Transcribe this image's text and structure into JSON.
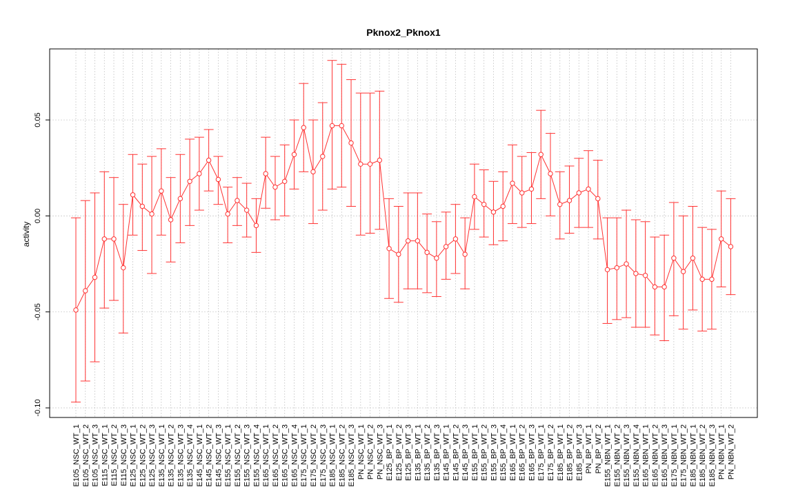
{
  "chart_data": {
    "type": "line",
    "title": "Pknox2_Pknox1",
    "xlabel": "",
    "ylabel": "activity",
    "ylim": [
      -0.105,
      0.087
    ],
    "y_ticks": [
      -0.1,
      -0.05,
      0.0,
      0.05
    ],
    "y_tick_labels": [
      "-0.10",
      "-0.05",
      "0.00",
      "0.05"
    ],
    "grid": true,
    "series_color": "#ff3030",
    "categories": [
      "E105_NSC_WT_1",
      "E105_NSC_WT_2",
      "E105_NSC_WT_3",
      "E115_NSC_WT_1",
      "E115_NSC_WT_2",
      "E115_NSC_WT_3",
      "E125_NSC_WT_1",
      "E125_NSC_WT_2",
      "E125_NSC_WT_3",
      "E135_NSC_WT_1",
      "E135_NSC_WT_2",
      "E135_NSC_WT_3",
      "E135_NSC_WT_4",
      "E145_NSC_WT_1",
      "E145_NSC_WT_2",
      "E145_NSC_WT_3",
      "E155_NSC_WT_1",
      "E155_NSC_WT_2",
      "E155_NSC_WT_3",
      "E155_NSC_WT_4",
      "E165_NSC_WT_1",
      "E165_NSC_WT_2",
      "E165_NSC_WT_3",
      "E165_NSC_WT_4",
      "E175_NSC_WT_1",
      "E175_NSC_WT_2",
      "E175_NSC_WT_3",
      "E185_NSC_WT_1",
      "E185_NSC_WT_2",
      "E185_NSC_WT_3",
      "PN_NSC_WT_1",
      "PN_NSC_WT_2",
      "PN_NSC_WT_3",
      "E125_BP_WT_1",
      "E125_BP_WT_2",
      "E125_BP_WT_3",
      "E135_BP_WT_1",
      "E135_BP_WT_2",
      "E135_BP_WT_3",
      "E145_BP_WT_1",
      "E145_BP_WT_2",
      "E145_BP_WT_3",
      "E155_BP_WT_1",
      "E155_BP_WT_2",
      "E155_BP_WT_3",
      "E155_BP_WT_4",
      "E165_BP_WT_1",
      "E165_BP_WT_2",
      "E165_BP_WT_3",
      "E175_BP_WT_1",
      "E175_BP_WT_2",
      "E185_BP_WT_1",
      "E185_BP_WT_2",
      "E185_BP_WT_3",
      "PN_BP_WT_1",
      "PN_BP_WT_2",
      "E155_NBN_WT_1",
      "E155_NBN_WT_2",
      "E155_NBN_WT_3",
      "E155_NBN_WT_4",
      "E165_NBN_WT_1",
      "E165_NBN_WT_2",
      "E165_NBN_WT_3",
      "E175_NBN_WT_1",
      "E175_NBN_WT_2",
      "E185_NBN_WT_1",
      "E185_NBN_WT_2",
      "E185_NBN_WT_3",
      "PN_NBN_WT_1",
      "PN_NBN_WT_2"
    ],
    "values": [
      -0.049,
      -0.039,
      -0.032,
      -0.012,
      -0.012,
      -0.027,
      0.011,
      0.005,
      0.001,
      0.013,
      -0.002,
      0.009,
      0.018,
      0.022,
      0.029,
      0.019,
      0.001,
      0.008,
      0.003,
      -0.005,
      0.022,
      0.015,
      0.018,
      0.032,
      0.046,
      0.023,
      0.031,
      0.047,
      0.047,
      0.038,
      0.027,
      0.027,
      0.029,
      -0.017,
      -0.02,
      -0.013,
      -0.013,
      -0.019,
      -0.022,
      -0.016,
      -0.012,
      -0.02,
      0.01,
      0.006,
      0.002,
      0.005,
      0.017,
      0.012,
      0.014,
      0.032,
      0.022,
      0.006,
      0.008,
      0.012,
      0.014,
      0.009,
      -0.028,
      -0.027,
      -0.025,
      -0.03,
      -0.031,
      -0.037,
      -0.037,
      -0.022,
      -0.029,
      -0.022,
      -0.033,
      -0.033,
      -0.012,
      -0.016
    ],
    "upper": [
      -0.001,
      0.008,
      0.012,
      0.023,
      0.02,
      0.006,
      0.032,
      0.027,
      0.031,
      0.035,
      0.02,
      0.032,
      0.04,
      0.041,
      0.045,
      0.031,
      0.015,
      0.02,
      0.017,
      0.009,
      0.041,
      0.031,
      0.037,
      0.05,
      0.069,
      0.05,
      0.059,
      0.081,
      0.079,
      0.071,
      0.064,
      0.064,
      0.065,
      0.009,
      0.005,
      0.012,
      0.012,
      0.001,
      -0.003,
      0.002,
      0.006,
      -0.001,
      0.027,
      0.024,
      0.018,
      0.023,
      0.037,
      0.031,
      0.033,
      0.055,
      0.043,
      0.023,
      0.026,
      0.03,
      0.034,
      0.029,
      -0.001,
      -0.001,
      0.003,
      -0.002,
      -0.003,
      -0.011,
      -0.01,
      0.007,
      0.0,
      0.005,
      -0.006,
      -0.007,
      0.013,
      0.009
    ],
    "lower": [
      -0.097,
      -0.086,
      -0.076,
      -0.048,
      -0.044,
      -0.061,
      -0.01,
      -0.018,
      -0.03,
      -0.01,
      -0.024,
      -0.014,
      -0.005,
      0.003,
      0.013,
      0.006,
      -0.014,
      -0.005,
      -0.011,
      -0.019,
      0.004,
      -0.002,
      0.0,
      0.014,
      0.023,
      -0.004,
      0.003,
      0.014,
      0.015,
      0.005,
      -0.01,
      -0.009,
      -0.007,
      -0.043,
      -0.045,
      -0.038,
      -0.038,
      -0.04,
      -0.042,
      -0.033,
      -0.03,
      -0.038,
      -0.007,
      -0.011,
      -0.015,
      -0.013,
      -0.004,
      -0.006,
      -0.004,
      0.009,
      0.0,
      -0.012,
      -0.009,
      -0.006,
      -0.006,
      -0.012,
      -0.056,
      -0.054,
      -0.053,
      -0.058,
      -0.058,
      -0.062,
      -0.065,
      -0.052,
      -0.059,
      -0.049,
      -0.06,
      -0.059,
      -0.037,
      -0.041
    ]
  }
}
